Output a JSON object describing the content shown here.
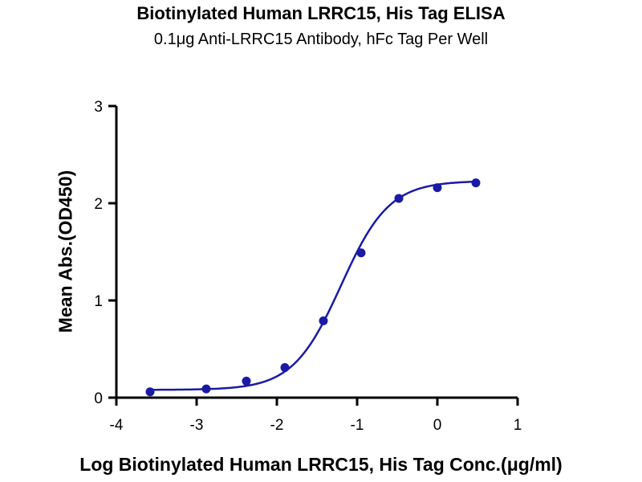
{
  "chart_data": {
    "type": "scatter",
    "title": "Biotinylated Human LRRC15, His Tag ELISA",
    "subtitle": "0.1μg Anti-LRRC15 Antibody, hFc Tag Per Well",
    "xlabel": "Log Biotinylated Human LRRC15, His Tag Conc.(μg/ml)",
    "ylabel": "Mean Abs.(OD450)",
    "xlim": [
      -4,
      1
    ],
    "ylim": [
      0,
      3
    ],
    "xticks": [
      -4,
      -3,
      -2,
      -1,
      0,
      1
    ],
    "yticks": [
      0,
      1,
      2,
      3
    ],
    "grid": false,
    "color": "#1a1aa6",
    "series": [
      {
        "x": [
          -3.58,
          -2.88,
          -2.38,
          -1.9,
          -1.42,
          -0.95,
          -0.48,
          0.0,
          0.48
        ],
        "y": [
          0.06,
          0.09,
          0.17,
          0.31,
          0.79,
          1.49,
          2.05,
          2.16,
          2.21
        ]
      }
    ],
    "fit": {
      "type": "4PL",
      "bottom": 0.08,
      "top": 2.23,
      "logEC50": -1.2,
      "hillslope": 1.45
    }
  }
}
